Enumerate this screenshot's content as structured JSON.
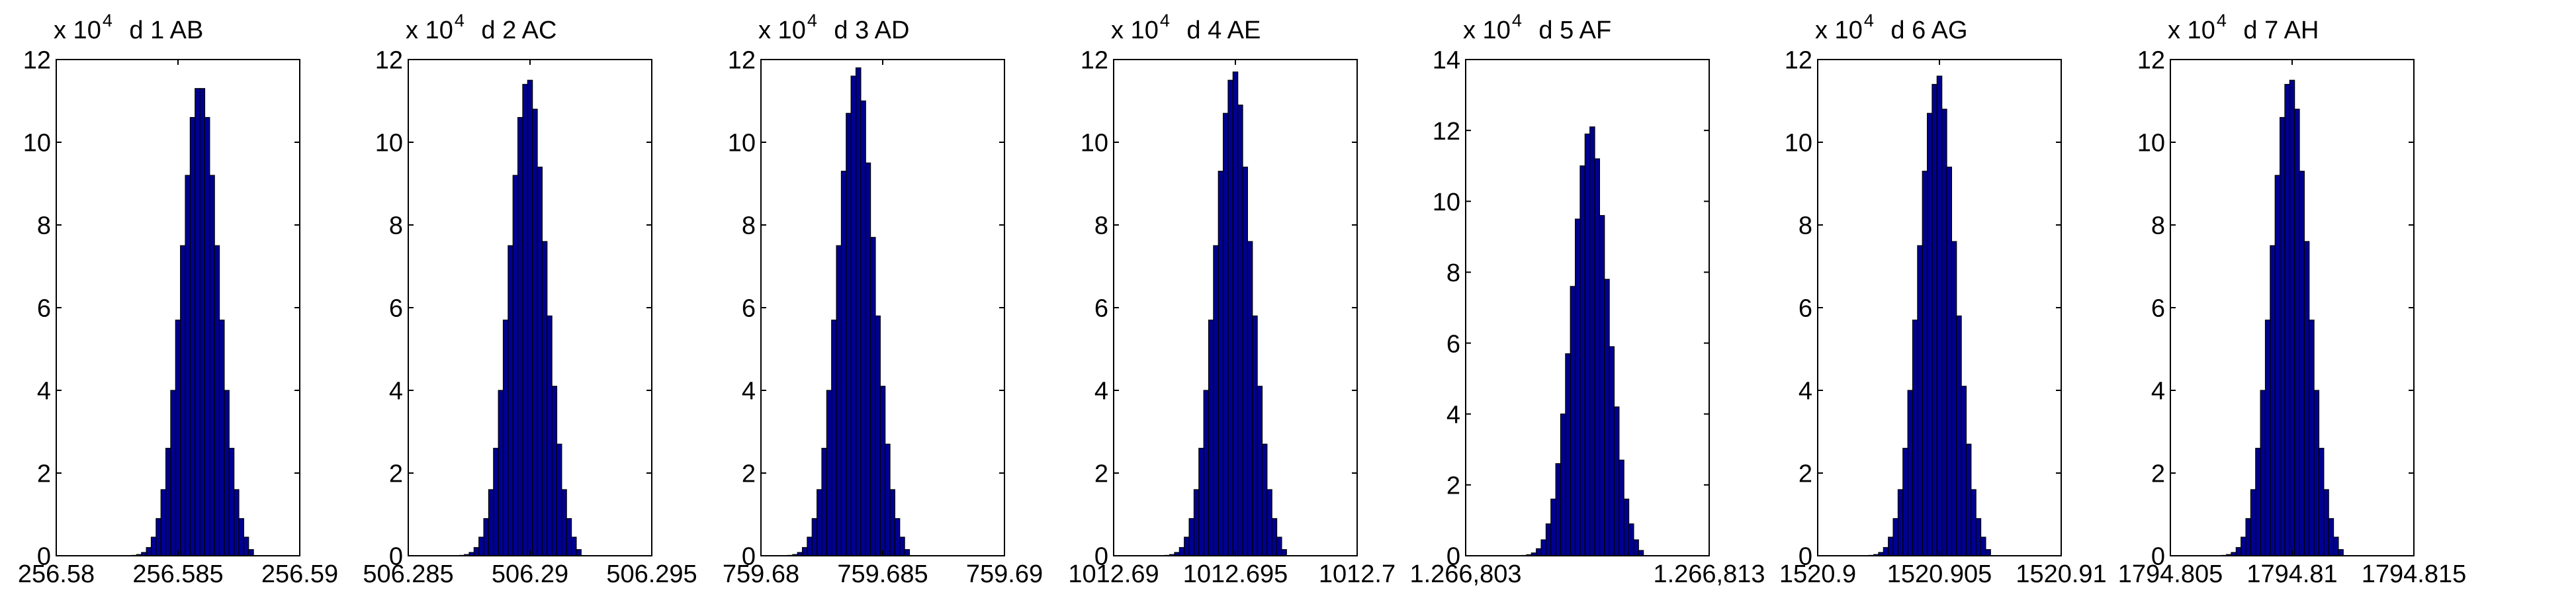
{
  "chart_data": [
    {
      "type": "bar",
      "title": "d 1 AB",
      "multiplier": "x 10",
      "exponent": "4",
      "ylim": [
        0,
        120000
      ],
      "yticks": [
        0,
        20000,
        40000,
        60000,
        80000,
        100000,
        120000
      ],
      "yticklabels": [
        "0",
        "2",
        "4",
        "6",
        "8",
        "10",
        "12"
      ],
      "xlim": [
        256.58,
        256.59
      ],
      "xticks": [
        256.58,
        256.585,
        256.59
      ],
      "xticklabels": [
        "256.58",
        "256.585",
        "256.59"
      ],
      "bin_width": 0.0002,
      "x": [
        256.5832,
        256.5834,
        256.5836,
        256.5838,
        256.584,
        256.5842,
        256.5844,
        256.5846,
        256.5848,
        256.585,
        256.5852,
        256.5854,
        256.5856,
        256.5858,
        256.586,
        256.5862,
        256.5864,
        256.5866,
        256.5868,
        256.587,
        256.5872,
        256.5874,
        256.5876,
        256.5878,
        256.588
      ],
      "values": [
        100,
        300,
        800,
        2000,
        4500,
        9000,
        16000,
        26000,
        40000,
        57000,
        75000,
        92000,
        106000,
        113000,
        113000,
        106000,
        92000,
        75000,
        57000,
        40000,
        26000,
        16000,
        9000,
        4500,
        1500
      ]
    },
    {
      "type": "bar",
      "title": "d 2 AC",
      "multiplier": "x 10",
      "exponent": "4",
      "ylim": [
        0,
        120000
      ],
      "yticks": [
        0,
        20000,
        40000,
        60000,
        80000,
        100000,
        120000
      ],
      "yticklabels": [
        "0",
        "2",
        "4",
        "6",
        "8",
        "10",
        "12"
      ],
      "xlim": [
        506.285,
        506.295
      ],
      "xticks": [
        506.285,
        506.29,
        506.295
      ],
      "xticklabels": [
        "506.285",
        "506.29",
        "506.295"
      ],
      "bin_width": 0.0002,
      "x": [
        506.2872,
        506.2874,
        506.2876,
        506.2878,
        506.288,
        506.2882,
        506.2884,
        506.2886,
        506.2888,
        506.289,
        506.2892,
        506.2894,
        506.2896,
        506.2898,
        506.29,
        506.2902,
        506.2904,
        506.2906,
        506.2908,
        506.291,
        506.2912,
        506.2914,
        506.2916,
        506.2918,
        506.292
      ],
      "values": [
        100,
        300,
        800,
        2000,
        4500,
        9000,
        16000,
        26000,
        40000,
        57000,
        75000,
        92000,
        106000,
        114000,
        115000,
        108000,
        94000,
        76000,
        58000,
        41000,
        27000,
        16000,
        9000,
        4500,
        1500
      ]
    },
    {
      "type": "bar",
      "title": "d 3 AD",
      "multiplier": "x 10",
      "exponent": "4",
      "ylim": [
        0,
        120000
      ],
      "yticks": [
        0,
        20000,
        40000,
        60000,
        80000,
        100000,
        120000
      ],
      "yticklabels": [
        "0",
        "2",
        "4",
        "6",
        "8",
        "10",
        "12"
      ],
      "xlim": [
        759.68,
        759.69
      ],
      "xticks": [
        759.68,
        759.685,
        759.69
      ],
      "xticklabels": [
        "759.68",
        "759.685",
        "759.69"
      ],
      "bin_width": 0.0002,
      "x": [
        759.6812,
        759.6814,
        759.6816,
        759.6818,
        759.682,
        759.6822,
        759.6824,
        759.6826,
        759.6828,
        759.683,
        759.6832,
        759.6834,
        759.6836,
        759.6838,
        759.684,
        759.6842,
        759.6844,
        759.6846,
        759.6848,
        759.685,
        759.6852,
        759.6854,
        759.6856,
        759.6858,
        759.686
      ],
      "values": [
        100,
        300,
        800,
        2000,
        4500,
        9000,
        16000,
        26000,
        40000,
        57000,
        75000,
        93000,
        107000,
        116000,
        118000,
        110000,
        95000,
        77000,
        58000,
        41000,
        27000,
        16000,
        9000,
        4500,
        1500
      ]
    },
    {
      "type": "bar",
      "title": "d 4 AE",
      "multiplier": "x 10",
      "exponent": "4",
      "ylim": [
        0,
        120000
      ],
      "yticks": [
        0,
        20000,
        40000,
        60000,
        80000,
        100000,
        120000
      ],
      "yticklabels": [
        "0",
        "2",
        "4",
        "6",
        "8",
        "10",
        "12"
      ],
      "xlim": [
        1012.69,
        1012.7
      ],
      "xticks": [
        1012.69,
        1012.695,
        1012.7
      ],
      "xticklabels": [
        "1012.69",
        "1012.695",
        "1012.7"
      ],
      "bin_width": 0.0002,
      "x": [
        1012.6922,
        1012.6924,
        1012.6926,
        1012.6928,
        1012.693,
        1012.6932,
        1012.6934,
        1012.6936,
        1012.6938,
        1012.694,
        1012.6942,
        1012.6944,
        1012.6946,
        1012.6948,
        1012.695,
        1012.6952,
        1012.6954,
        1012.6956,
        1012.6958,
        1012.696,
        1012.6962,
        1012.6964,
        1012.6966,
        1012.6968,
        1012.697
      ],
      "values": [
        100,
        300,
        800,
        2000,
        4500,
        9000,
        16000,
        26000,
        40000,
        57000,
        75000,
        93000,
        107000,
        115000,
        117000,
        109000,
        94000,
        76000,
        58000,
        41000,
        27000,
        16000,
        9000,
        4500,
        1500
      ]
    },
    {
      "type": "bar",
      "title": "d 5 AF",
      "multiplier": "x 10",
      "exponent": "4",
      "ylim": [
        0,
        140000
      ],
      "yticks": [
        0,
        20000,
        40000,
        60000,
        80000,
        100000,
        120000,
        140000
      ],
      "yticklabels": [
        "0",
        "2",
        "4",
        "6",
        "8",
        "10",
        "12",
        "14"
      ],
      "xlim": [
        1266.803,
        1266.813
      ],
      "xticks": [
        1266.803,
        1266.813
      ],
      "xticklabels": [
        "1.266,803",
        "1.266,813"
      ],
      "bin_width": 0.0002,
      "x": [
        1266.8054,
        1266.8056,
        1266.8058,
        1266.806,
        1266.8062,
        1266.8064,
        1266.8066,
        1266.8068,
        1266.807,
        1266.8072,
        1266.8074,
        1266.8076,
        1266.8078,
        1266.808,
        1266.8082,
        1266.8084,
        1266.8086,
        1266.8088,
        1266.809,
        1266.8092,
        1266.8094,
        1266.8096,
        1266.8098,
        1266.81,
        1266.8102
      ],
      "values": [
        100,
        300,
        800,
        2000,
        4500,
        9000,
        16000,
        26000,
        40000,
        57000,
        76000,
        95000,
        110000,
        119000,
        121000,
        112000,
        96000,
        78000,
        59000,
        42000,
        27000,
        16000,
        9000,
        4500,
        1500
      ]
    },
    {
      "type": "bar",
      "title": "d 6 AG",
      "multiplier": "x 10",
      "exponent": "4",
      "ylim": [
        0,
        120000
      ],
      "yticks": [
        0,
        20000,
        40000,
        60000,
        80000,
        100000,
        120000
      ],
      "yticklabels": [
        "0",
        "2",
        "4",
        "6",
        "8",
        "10",
        "12"
      ],
      "xlim": [
        1520.9,
        1520.91
      ],
      "xticks": [
        1520.9,
        1520.905,
        1520.91
      ],
      "xticklabels": [
        "1520.9",
        "1520.905",
        "1520.91"
      ],
      "bin_width": 0.0002,
      "x": [
        1520.9022,
        1520.9024,
        1520.9026,
        1520.9028,
        1520.903,
        1520.9032,
        1520.9034,
        1520.9036,
        1520.9038,
        1520.904,
        1520.9042,
        1520.9044,
        1520.9046,
        1520.9048,
        1520.905,
        1520.9052,
        1520.9054,
        1520.9056,
        1520.9058,
        1520.906,
        1520.9062,
        1520.9064,
        1520.9066,
        1520.9068,
        1520.907
      ],
      "values": [
        100,
        300,
        800,
        2000,
        4500,
        9000,
        16000,
        26000,
        40000,
        57000,
        75000,
        93000,
        107000,
        114000,
        116000,
        108000,
        94000,
        76000,
        58000,
        41000,
        27000,
        16000,
        9000,
        4500,
        1500
      ]
    },
    {
      "type": "bar",
      "title": "d 7 AH",
      "multiplier": "x 10",
      "exponent": "4",
      "ylim": [
        0,
        120000
      ],
      "yticks": [
        0,
        20000,
        40000,
        60000,
        80000,
        100000,
        120000
      ],
      "yticklabels": [
        "0",
        "2",
        "4",
        "6",
        "8",
        "10",
        "12"
      ],
      "xlim": [
        1794.805,
        1794.815
      ],
      "xticks": [
        1794.805,
        1794.81,
        1794.815
      ],
      "xticklabels": [
        "1794.805",
        "1794.81",
        "1794.815"
      ],
      "bin_width": 0.0002,
      "x": [
        1794.8072,
        1794.8074,
        1794.8076,
        1794.8078,
        1794.808,
        1794.8082,
        1794.8084,
        1794.8086,
        1794.8088,
        1794.809,
        1794.8092,
        1794.8094,
        1794.8096,
        1794.8098,
        1794.81,
        1794.8102,
        1794.8104,
        1794.8106,
        1794.8108,
        1794.811,
        1794.8112,
        1794.8114,
        1794.8116,
        1794.8118,
        1794.812
      ],
      "values": [
        100,
        300,
        800,
        2000,
        4500,
        9000,
        16000,
        26000,
        40000,
        57000,
        75000,
        92000,
        106000,
        114000,
        115000,
        108000,
        93000,
        76000,
        57000,
        40000,
        26000,
        16000,
        9000,
        4500,
        1500
      ]
    }
  ],
  "colors": {
    "bar_fill": "#00008f",
    "bar_edge": "#000000",
    "axes": "#000000",
    "background": "#ffffff"
  }
}
